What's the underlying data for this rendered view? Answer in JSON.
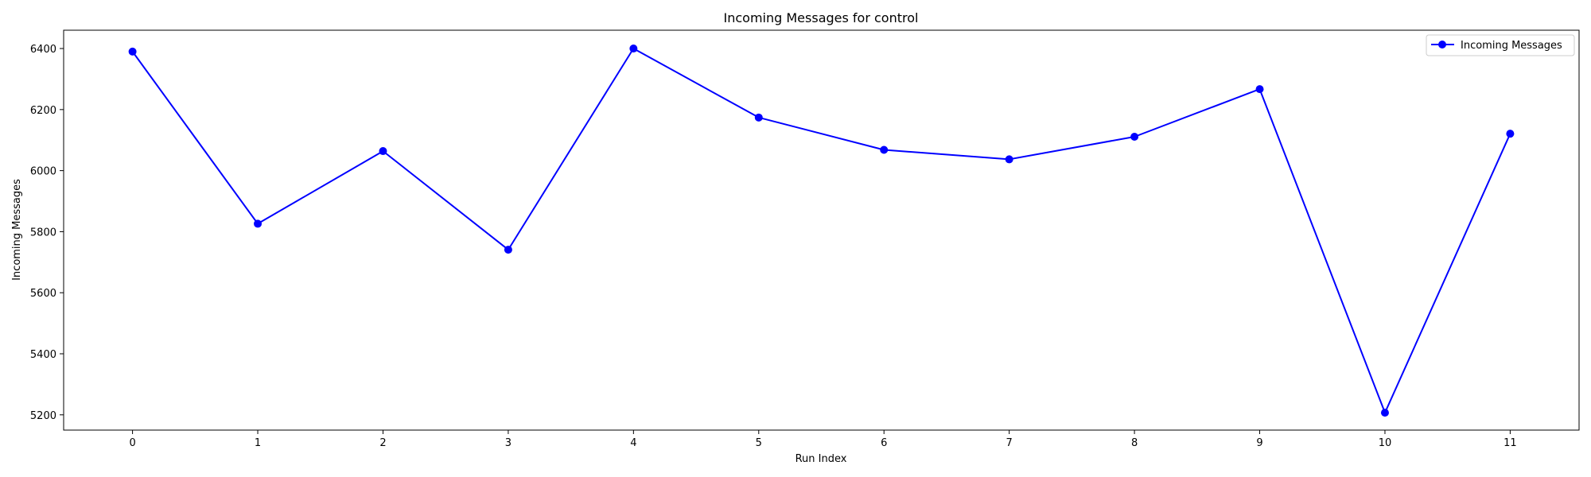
{
  "chart_data": {
    "type": "line",
    "title": "Incoming Messages for control",
    "xlabel": "Run Index",
    "ylabel": "Incoming Messages",
    "x": [
      0,
      1,
      2,
      3,
      4,
      5,
      6,
      7,
      8,
      9,
      10,
      11
    ],
    "xticks": [
      "0",
      "1",
      "2",
      "3",
      "4",
      "5",
      "6",
      "7",
      "8",
      "9",
      "10",
      "11"
    ],
    "yticks": [
      "5200",
      "5400",
      "5600",
      "5800",
      "6000",
      "6200",
      "6400"
    ],
    "xlim": [
      -0.55,
      11.55
    ],
    "ylim": [
      5150,
      6460
    ],
    "grid": false,
    "legend_position": "top-right",
    "series": [
      {
        "name": "Incoming Messages",
        "color": "#0000ff",
        "marker": "circle",
        "values": [
          6390,
          5826,
          6064,
          5741,
          6400,
          6174,
          6068,
          6037,
          6111,
          6267,
          5207,
          6121
        ]
      }
    ]
  }
}
